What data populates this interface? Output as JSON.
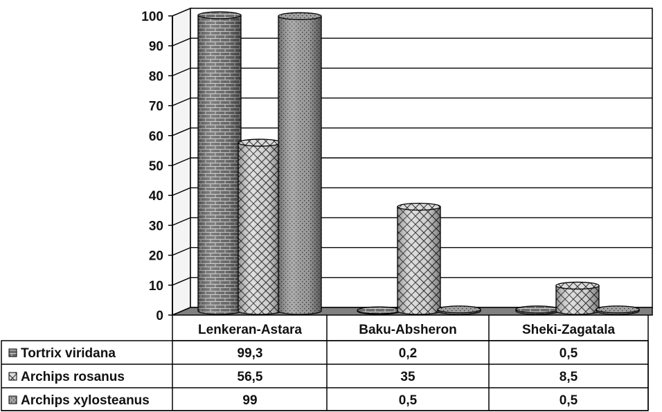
{
  "chart_data": {
    "type": "bar",
    "categories": [
      "Lenkeran-Astara",
      "Baku-Absheron",
      "Sheki-Zagatala"
    ],
    "series": [
      {
        "name": "Tortrix viridana",
        "values": [
          99.3,
          0.2,
          0.5
        ],
        "labels": [
          "99,3",
          "0,2",
          "0,5"
        ],
        "pattern": "brick"
      },
      {
        "name": "Archips rosanus",
        "values": [
          56.5,
          35,
          8.5
        ],
        "labels": [
          "56,5",
          "35",
          "8,5"
        ],
        "pattern": "crosshatch"
      },
      {
        "name": "Archips xylosteanus",
        "values": [
          99,
          0.5,
          0.5
        ],
        "labels": [
          "99",
          "0,5",
          "0,5"
        ],
        "pattern": "dots"
      }
    ],
    "ylim": [
      0,
      100
    ],
    "yticks": [
      "0",
      "10",
      "20",
      "30",
      "40",
      "50",
      "60",
      "70",
      "80",
      "90",
      "100"
    ],
    "grid": true,
    "legend": "data table below chart",
    "colors": {
      "wall": "#ffffff",
      "floor": "#808080",
      "bar_brick": "#777777",
      "bar_hatch": "#d9d9d9",
      "bar_dots": "#a6a6a6"
    }
  }
}
